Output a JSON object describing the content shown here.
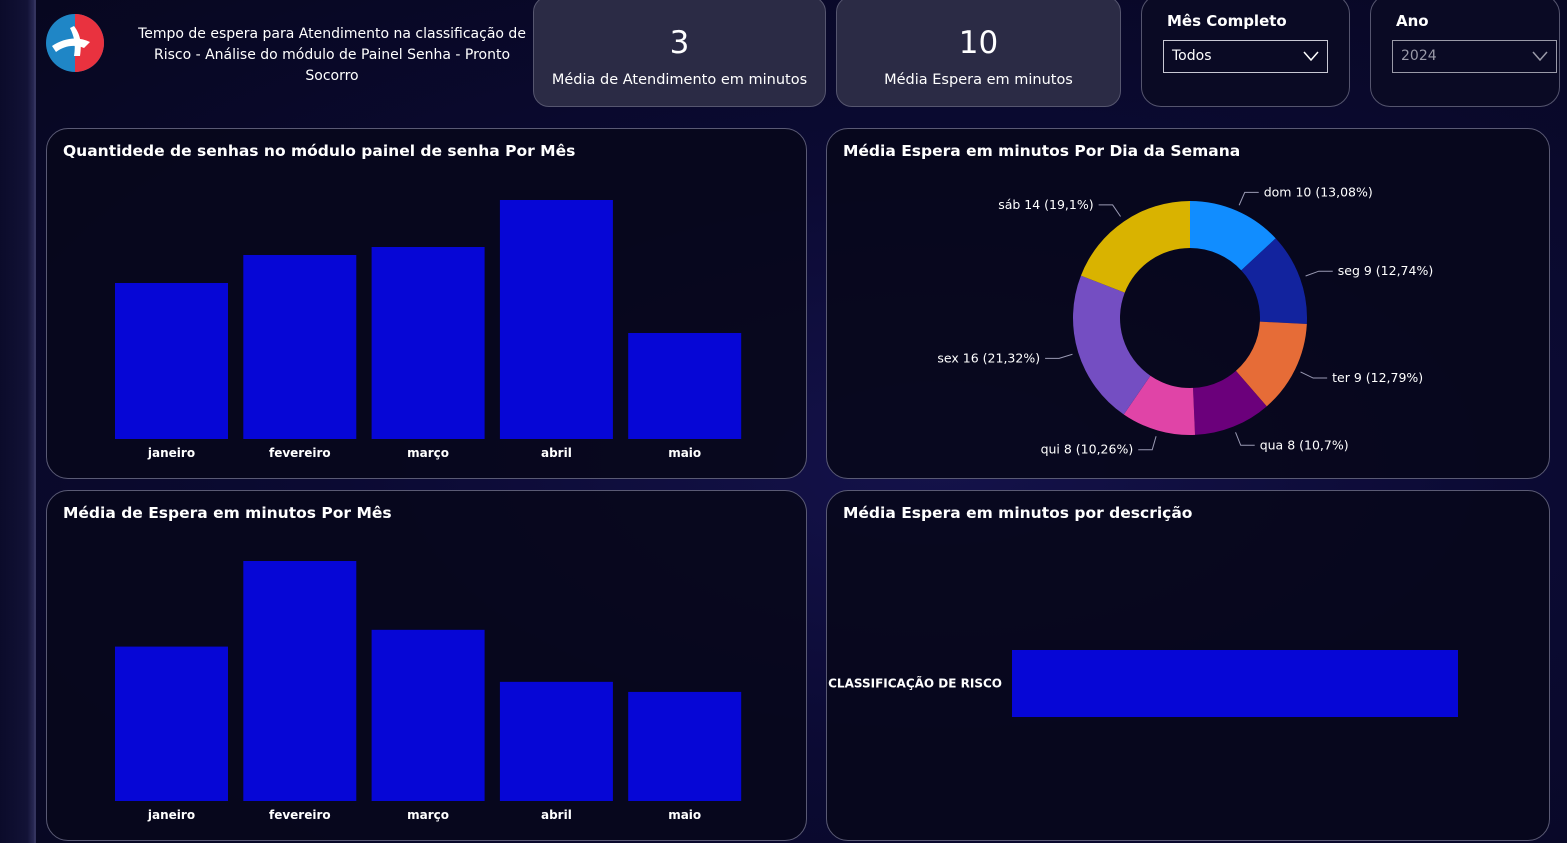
{
  "header": {
    "title": "Tempo de espera para Atendimento na classificação de Risco - Análise do módulo de Painel Senha - Pronto Socorro"
  },
  "kpis": {
    "atendimento": {
      "value": "3",
      "label": "Média de Atendimento em minutos"
    },
    "espera": {
      "value": "10",
      "label": "Média Espera em minutos"
    }
  },
  "slicers": {
    "mes": {
      "title": "Mês Completo",
      "selected": "Todos"
    },
    "ano": {
      "title": "Ano",
      "selected": "2024"
    }
  },
  "colors": {
    "bar": "#0606d6",
    "pie": [
      "#118dff",
      "#12239e",
      "#e66c37",
      "#6b007b",
      "#e044a7",
      "#744ec2",
      "#d9b300"
    ]
  },
  "chart_data": [
    {
      "type": "bar",
      "title": "Quantidede de senhas no módulo painel de senha Por Mês",
      "categories": [
        "janeiro",
        "fevereiro",
        "março",
        "abril",
        "maio"
      ],
      "values": [
        156,
        184,
        192,
        239,
        106
      ],
      "ylim": [
        0,
        240
      ]
    },
    {
      "type": "pie",
      "title": "Média Espera em minutos Por Dia da Semana",
      "labels": [
        "dom",
        "seg",
        "ter",
        "qua",
        "qui",
        "sex",
        "sáb"
      ],
      "values": [
        10,
        9,
        9,
        8,
        8,
        16,
        14
      ],
      "percent_labels": [
        "13,08%",
        "12,74%",
        "12,79%",
        "10,7%",
        "10,26%",
        "21,32%",
        "19,1%"
      ],
      "percents": [
        13.08,
        12.74,
        12.79,
        10.7,
        10.26,
        21.32,
        19.1
      ]
    },
    {
      "type": "bar",
      "title": "Média de Espera em minutos Por Mês",
      "categories": [
        "janeiro",
        "fevereiro",
        "março",
        "abril",
        "maio"
      ],
      "values": [
        9.2,
        14.3,
        10.2,
        7.1,
        6.5
      ],
      "ylim": [
        0,
        14.3
      ]
    },
    {
      "type": "bar",
      "title": "Média Espera em minutos por descrição",
      "categories": [
        "CLASSIFICAÇÃO DE RISCO"
      ],
      "values": [
        10
      ],
      "xlim": [
        0,
        10
      ]
    }
  ]
}
